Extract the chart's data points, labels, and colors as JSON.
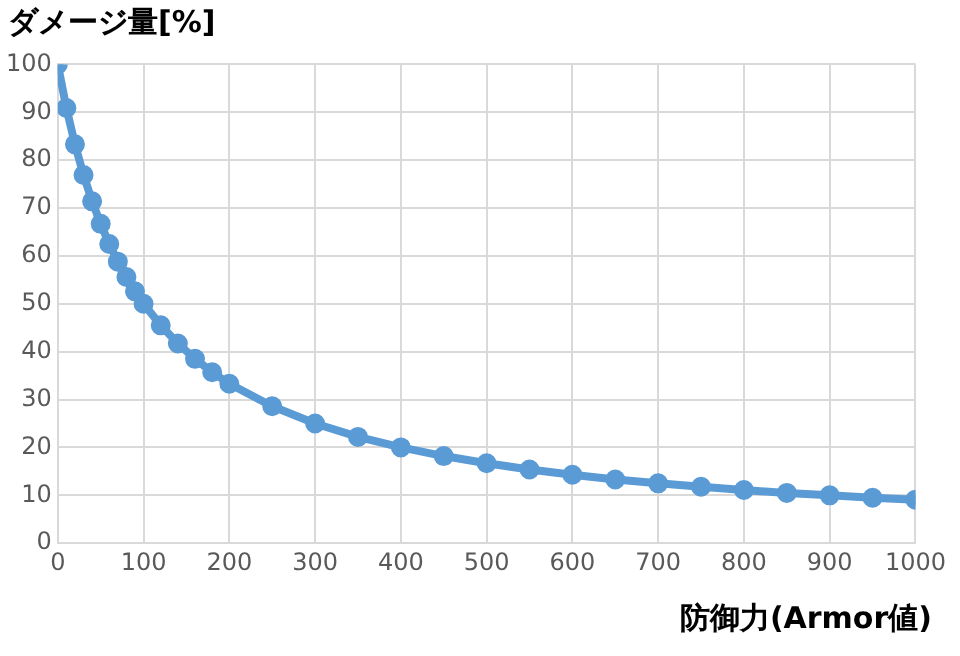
{
  "chart_data": {
    "type": "line",
    "ylabel": "ダメージ量[%]",
    "xlabel": "防御力(Armor値)",
    "x": [
      0,
      10,
      20,
      30,
      40,
      50,
      60,
      70,
      80,
      90,
      100,
      120,
      140,
      160,
      180,
      200,
      250,
      300,
      350,
      400,
      450,
      500,
      550,
      600,
      650,
      700,
      750,
      800,
      850,
      900,
      950,
      1000
    ],
    "series": [
      {
        "color": "#5b9bd5",
        "values": [
          100,
          90.9,
          83.3,
          76.9,
          71.4,
          66.7,
          62.5,
          58.8,
          55.6,
          52.6,
          50,
          45.5,
          41.7,
          38.5,
          35.7,
          33.3,
          28.6,
          25,
          22.2,
          20,
          18.2,
          16.7,
          15.4,
          14.3,
          13.3,
          12.5,
          11.8,
          11.1,
          10.5,
          10,
          9.5,
          9.1
        ]
      }
    ],
    "xlim": [
      0,
      1000
    ],
    "xticks": [
      0,
      100,
      200,
      300,
      400,
      500,
      600,
      700,
      800,
      900,
      1000
    ],
    "ylim": [
      0,
      100
    ],
    "yticks": [
      0,
      10,
      20,
      30,
      40,
      50,
      60,
      70,
      80,
      90,
      100
    ],
    "grid": true,
    "marker": "circle",
    "line_style": "solid"
  }
}
